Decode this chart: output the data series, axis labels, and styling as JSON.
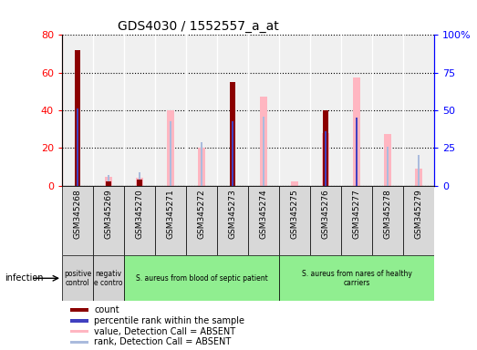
{
  "title": "GDS4030 / 1552557_a_at",
  "samples": [
    "GSM345268",
    "GSM345269",
    "GSM345270",
    "GSM345271",
    "GSM345272",
    "GSM345273",
    "GSM345274",
    "GSM345275",
    "GSM345276",
    "GSM345277",
    "GSM345278",
    "GSM345279"
  ],
  "count_values": [
    72,
    2,
    3,
    null,
    null,
    55,
    null,
    null,
    40,
    null,
    null,
    null
  ],
  "rank_values": [
    51,
    null,
    null,
    null,
    null,
    43,
    null,
    null,
    36,
    45,
    null,
    null
  ],
  "absent_value": [
    null,
    6,
    5,
    50,
    25,
    null,
    59,
    3,
    35,
    72,
    34,
    11
  ],
  "absent_rank": [
    null,
    7,
    9,
    43,
    29,
    null,
    46,
    null,
    null,
    null,
    26,
    20
  ],
  "ylim_left": [
    0,
    80
  ],
  "ylim_right": [
    0,
    100
  ],
  "yticks_left": [
    0,
    20,
    40,
    60,
    80
  ],
  "yticks_right": [
    0,
    25,
    50,
    75,
    100
  ],
  "color_count": "#8B0000",
  "color_rank": "#4040C0",
  "color_absent_value": "#FFB6C1",
  "color_absent_rank": "#AABBDD",
  "groups": [
    {
      "label": "positive\ncontrol",
      "start": 0,
      "end": 1,
      "color": "#d3d3d3"
    },
    {
      "label": "negativ\ne contro",
      "start": 1,
      "end": 2,
      "color": "#d3d3d3"
    },
    {
      "label": "S. aureus from blood of septic patient",
      "start": 2,
      "end": 7,
      "color": "#90EE90"
    },
    {
      "label": "S. aureus from nares of healthy\ncarriers",
      "start": 7,
      "end": 12,
      "color": "#90EE90"
    }
  ],
  "legend_items": [
    {
      "label": "count",
      "color": "#8B0000"
    },
    {
      "label": "percentile rank within the sample",
      "color": "#4040C0"
    },
    {
      "label": "value, Detection Call = ABSENT",
      "color": "#FFB6C1"
    },
    {
      "label": "rank, Detection Call = ABSENT",
      "color": "#AABBDD"
    }
  ],
  "fig_width": 5.23,
  "fig_height": 3.84,
  "dpi": 100
}
